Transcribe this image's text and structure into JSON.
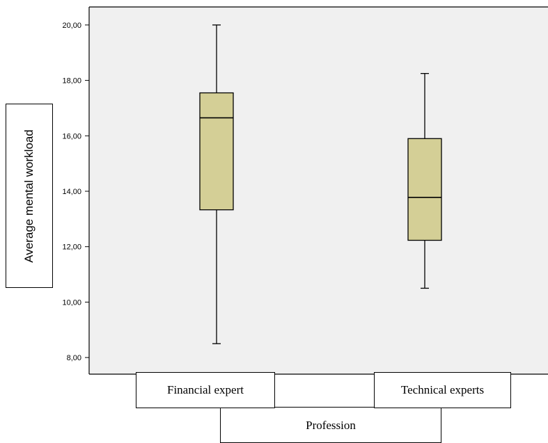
{
  "chart_data": {
    "type": "boxplot",
    "title": "",
    "ylabel": "Average mental workload",
    "xlabel": "Profession",
    "ylim": [
      7.4,
      20.65
    ],
    "yticks": [
      "8,00",
      "10,00",
      "12,00",
      "14,00",
      "16,00",
      "18,00",
      "20,00"
    ],
    "ytick_values": [
      8,
      10,
      12,
      14,
      16,
      18,
      20
    ],
    "categories": [
      "Financial expert",
      "Technical experts"
    ],
    "boxes": [
      {
        "category": "Financial expert",
        "min": 8.5,
        "q1": 13.33,
        "median": 16.65,
        "q3": 17.55,
        "max": 20.0
      },
      {
        "category": "Technical experts",
        "min": 10.5,
        "q1": 12.23,
        "median": 13.78,
        "q3": 15.9,
        "max": 18.25
      }
    ],
    "box_color": "#d4cf96",
    "plot_background": "#f0f0f0",
    "grid": false
  }
}
